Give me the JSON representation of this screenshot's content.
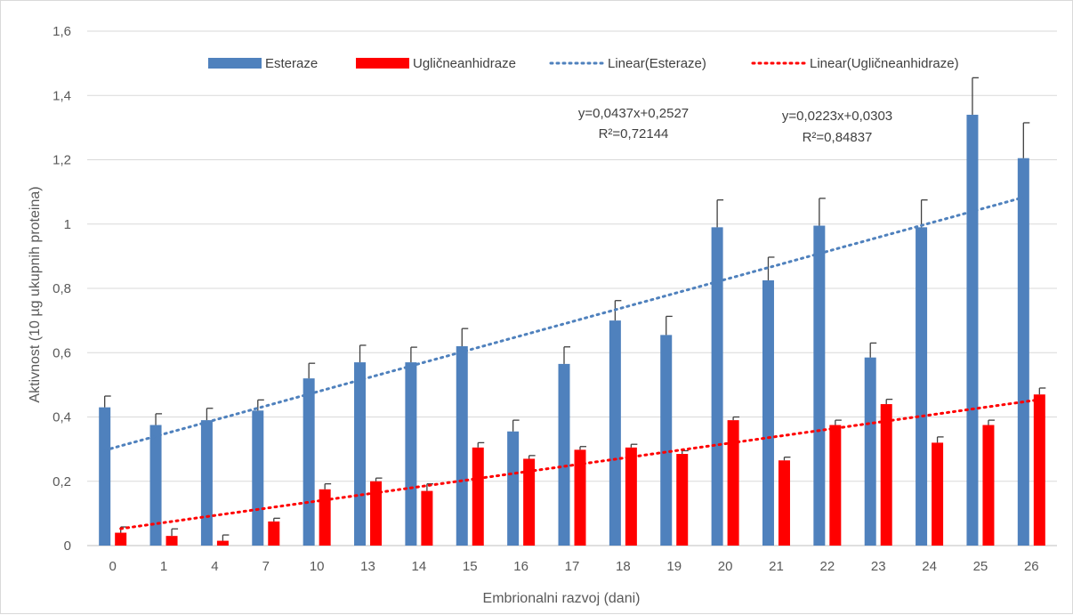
{
  "chart_data": {
    "type": "bar",
    "xlabel": "Embrionalni razvoj (dani)",
    "ylabel": "Aktivnost (10 µg ukupnih proteina)",
    "ylim": [
      0,
      1.6
    ],
    "ytick_values": [
      0,
      0.2,
      0.4,
      0.6,
      0.8,
      1,
      1.2,
      1.4,
      1.6
    ],
    "ytick_labels": [
      "0",
      "0,2",
      "0,4",
      "0,6",
      "0,8",
      "1",
      "1,2",
      "1,4",
      "1,6"
    ],
    "grid": true,
    "legend_position": "top",
    "categories": [
      "0",
      "1",
      "4",
      "7",
      "10",
      "13",
      "14",
      "15",
      "16",
      "17",
      "18",
      "19",
      "20",
      "21",
      "22",
      "23",
      "24",
      "25",
      "26"
    ],
    "series": [
      {
        "name": "Esteraze",
        "color": "#4f81bd",
        "values": [
          0.43,
          0.375,
          0.39,
          0.42,
          0.52,
          0.57,
          0.57,
          0.62,
          0.355,
          0.565,
          0.7,
          0.655,
          0.99,
          0.825,
          0.995,
          0.585,
          0.99,
          1.34,
          1.205
        ],
        "errors": [
          0.035,
          0.035,
          0.037,
          0.033,
          0.047,
          0.053,
          0.047,
          0.055,
          0.035,
          0.053,
          0.062,
          0.058,
          0.085,
          0.072,
          0.085,
          0.045,
          0.085,
          0.115,
          0.11
        ]
      },
      {
        "name": "Ugličneanhidraze",
        "color": "#ff0000",
        "values": [
          0.04,
          0.03,
          0.015,
          0.075,
          0.175,
          0.2,
          0.17,
          0.305,
          0.27,
          0.298,
          0.305,
          0.285,
          0.39,
          0.265,
          0.375,
          0.44,
          0.32,
          0.375,
          0.47
        ],
        "errors": [
          0.018,
          0.022,
          0.018,
          0.01,
          0.017,
          0.01,
          0.022,
          0.015,
          0.01,
          0.01,
          0.01,
          0.01,
          0.01,
          0.01,
          0.015,
          0.015,
          0.018,
          0.015,
          0.02
        ]
      }
    ],
    "trendlines": [
      {
        "name": "Linear(Esteraze)",
        "color": "#4f81bd",
        "slope": 0.0437,
        "intercept": 0.2527,
        "equation": "y=0,0437x+0,2527",
        "r2": "R²=0,72144"
      },
      {
        "name": "Linear(Ugličneanhidraze)",
        "color": "#ff0000",
        "slope": 0.0223,
        "intercept": 0.0303,
        "equation": "y=0,0223x+0,0303",
        "r2": "R²=0,84837"
      }
    ],
    "legend": [
      {
        "label": "Esteraze",
        "kind": "bar",
        "color": "#4f81bd"
      },
      {
        "label": "Ugličneanhidraze",
        "kind": "bar",
        "color": "#ff0000"
      },
      {
        "label": "Linear(Esteraze)",
        "kind": "dotted-line",
        "color": "#4f81bd"
      },
      {
        "label": "Linear(Ugličneanhidraze)",
        "kind": "dotted-line",
        "color": "#ff0000"
      }
    ]
  }
}
